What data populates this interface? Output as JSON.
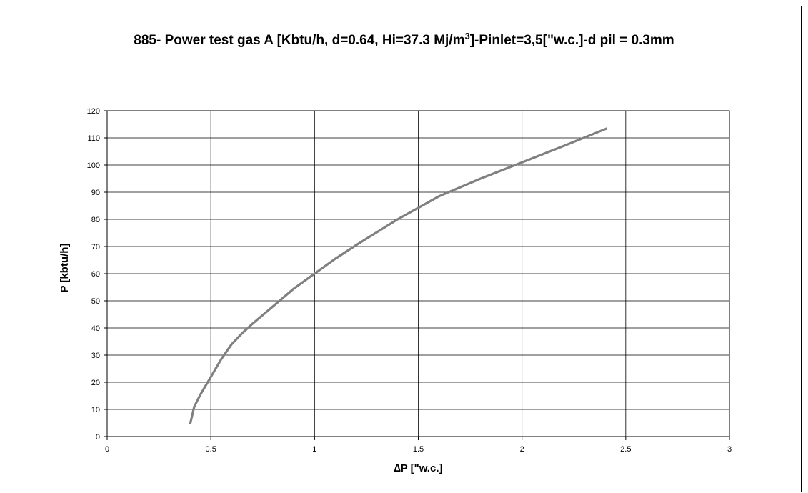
{
  "chart_data": {
    "type": "line",
    "title": {
      "main": "885- Power test gas A  [Kbtu/h, d=0.64, Hi=37.3 Mj/m",
      "superscript": "3",
      "suffix": "]-Pinlet=3,5[\"w.c.]-d pil = 0.3mm"
    },
    "xlabel": "∆P [\"w.c.]",
    "ylabel": "P [kbtu/h]",
    "xlim": [
      0,
      3
    ],
    "ylim": [
      0,
      120
    ],
    "x_ticks": [
      0,
      0.5,
      1,
      1.5,
      2,
      2.5,
      3
    ],
    "x_tick_labels": [
      "0",
      "0.5",
      "1",
      "1.5",
      "2",
      "2.5",
      "3"
    ],
    "y_ticks": [
      0,
      10,
      20,
      30,
      40,
      50,
      60,
      70,
      80,
      90,
      100,
      110,
      120
    ],
    "y_tick_labels": [
      "0",
      "10",
      "20",
      "30",
      "40",
      "50",
      "60",
      "70",
      "80",
      "90",
      "100",
      "110",
      "120"
    ],
    "grid": true,
    "legend": "none",
    "series": [
      {
        "color": "#808080",
        "x": [
          0.4,
          0.42,
          0.45,
          0.5,
          0.55,
          0.6,
          0.65,
          0.7,
          0.8,
          0.9,
          1.0,
          1.1,
          1.2,
          1.4,
          1.6,
          1.8,
          2.0,
          2.2,
          2.41
        ],
        "y": [
          4.5,
          11,
          15.5,
          22,
          28.5,
          34,
          38,
          41.5,
          48,
          54.5,
          60,
          65.5,
          70.5,
          80,
          88.5,
          95,
          101,
          107,
          113.5
        ]
      }
    ]
  }
}
